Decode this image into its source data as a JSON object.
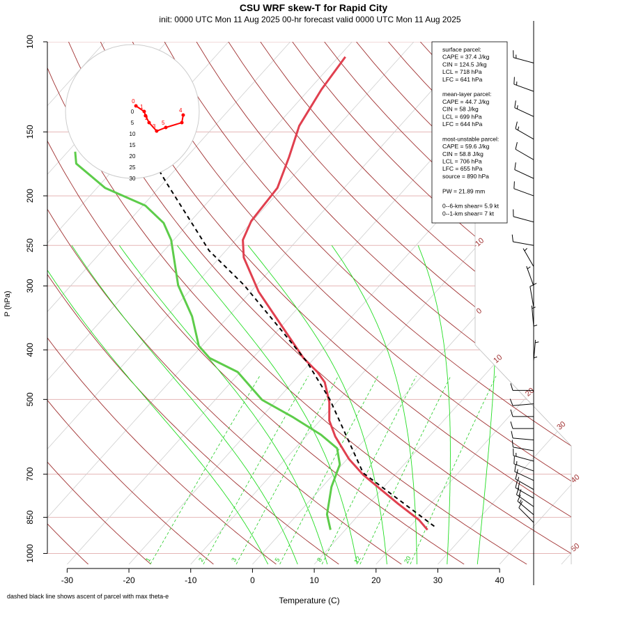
{
  "chart_data": {
    "type": "skewt",
    "title": "CSU WRF skew-T for Rapid City",
    "subtitle": "init: 0000 UTC Mon 11 Aug 2025    00-hr forecast valid 0000 UTC Mon 11 Aug 2025",
    "x_label": "Temperature (C)",
    "y_label": "P (hPa)",
    "footnote": "dashed black line shows ascent of parcel with max theta-e",
    "xlim": [
      -33.2,
      51.6
    ],
    "xticks": [
      -30,
      -20,
      -10,
      0,
      10,
      20,
      30,
      40
    ],
    "ylim": [
      1050,
      100
    ],
    "yticks": [
      100,
      150,
      200,
      250,
      300,
      400,
      500,
      700,
      850,
      1000
    ],
    "log_y": true,
    "isotherm_labels": [
      -10,
      0,
      10,
      20,
      30,
      40,
      50
    ],
    "mixing_ratio_labels": [
      1,
      2,
      3,
      5,
      8,
      12,
      20
    ],
    "temperature": {
      "color": "#e0404f",
      "pressure": [
        899,
        860,
        800,
        702,
        654,
        591,
        550,
        506,
        463,
        442,
        415,
        361,
        308,
        264,
        244,
        224,
        193,
        168,
        146,
        124,
        107
      ],
      "values": [
        23.3,
        20.5,
        14.8,
        4.9,
        0.3,
        -5.2,
        -8.5,
        -11.2,
        -14.8,
        -17.5,
        -21.8,
        -29.7,
        -38.7,
        -46.1,
        -48.8,
        -50.2,
        -50.8,
        -53.4,
        -56.3,
        -58.0,
        -58.9
      ]
    },
    "dewpoint": {
      "color": "#5dcc4a",
      "pressure": [
        899,
        839,
        741,
        670,
        623,
        586,
        542,
        501,
        442,
        415,
        393,
        344,
        299,
        244,
        226,
        209,
        193,
        173,
        164
      ],
      "values": [
        7.6,
        4.8,
        1.5,
        -0.4,
        -3.2,
        -7.8,
        -14.8,
        -22.4,
        -30.4,
        -37.0,
        -40.5,
        -45.9,
        -52.7,
        -60.4,
        -64.1,
        -69.6,
        -78.7,
        -86.9,
        -88.8
      ]
    },
    "parcel": {
      "color": "#000000",
      "pressure": [
        885,
        696,
        500,
        422,
        361,
        299,
        256,
        190,
        107
      ],
      "values": [
        23.9,
        4.6,
        -11.5,
        -20.7,
        -30.3,
        -42.0,
        -52.7,
        -69.1,
        -100.1
      ]
    },
    "hodograph": {
      "color": "#ff0000",
      "rings": [
        0,
        5,
        10,
        15,
        20,
        25,
        30
      ],
      "u": [
        1.6,
        5.3,
        5.9,
        7.5,
        10.9,
        15,
        22.2,
        22.8
      ],
      "v": [
        2.5,
        0,
        -1.9,
        -5,
        -8.8,
        -7.2,
        -5,
        -1.6
      ],
      "height_labels": [
        0,
        1,
        null,
        2,
        3,
        5,
        null,
        4
      ]
    },
    "wind": {
      "color": "#000000",
      "pressure": [
        110,
        125,
        140,
        155,
        170,
        185,
        200,
        225,
        250,
        275,
        300,
        330,
        360,
        390,
        420,
        450,
        480,
        510,
        540,
        570,
        600,
        630,
        660,
        690,
        720,
        750,
        780,
        810,
        840,
        870
      ],
      "direction": [
        285,
        290,
        295,
        300,
        300,
        295,
        290,
        285,
        280,
        330,
        340,
        350,
        355,
        0,
        5,
        0,
        270,
        265,
        270,
        270,
        275,
        280,
        285,
        290,
        295,
        300,
        300,
        305,
        310,
        315
      ],
      "speed": [
        15,
        15,
        15,
        15,
        10,
        10,
        10,
        10,
        10,
        5,
        5,
        10,
        5,
        5,
        5,
        5,
        10,
        10,
        10,
        10,
        10,
        10,
        15,
        15,
        15,
        15,
        20,
        20,
        15,
        10
      ]
    },
    "info_box": [
      [
        "surface parcel:",
        "CAPE = 37.4 J/kg",
        "CIN = 124.5 J/kg",
        "LCL = 718 hPa",
        "LFC = 641 hPa"
      ],
      [
        "mean-layer parcel:",
        "CAPE = 44.7 J/kg",
        "CIN = 58 J/kg",
        "LCL = 699 hPa",
        "LFC = 644 hPa"
      ],
      [
        "most-unstable parcel:",
        "CAPE = 59.6 J/kg",
        "CIN = 58.8 J/kg",
        "LCL = 706 hPa",
        "LFC = 655 hPa",
        "source = 890 hPa"
      ],
      [
        "PW =  21.89 mm"
      ],
      [
        "0--6-km shear= 5.9 kt",
        "0--1-km shear= 7 kt"
      ]
    ]
  }
}
